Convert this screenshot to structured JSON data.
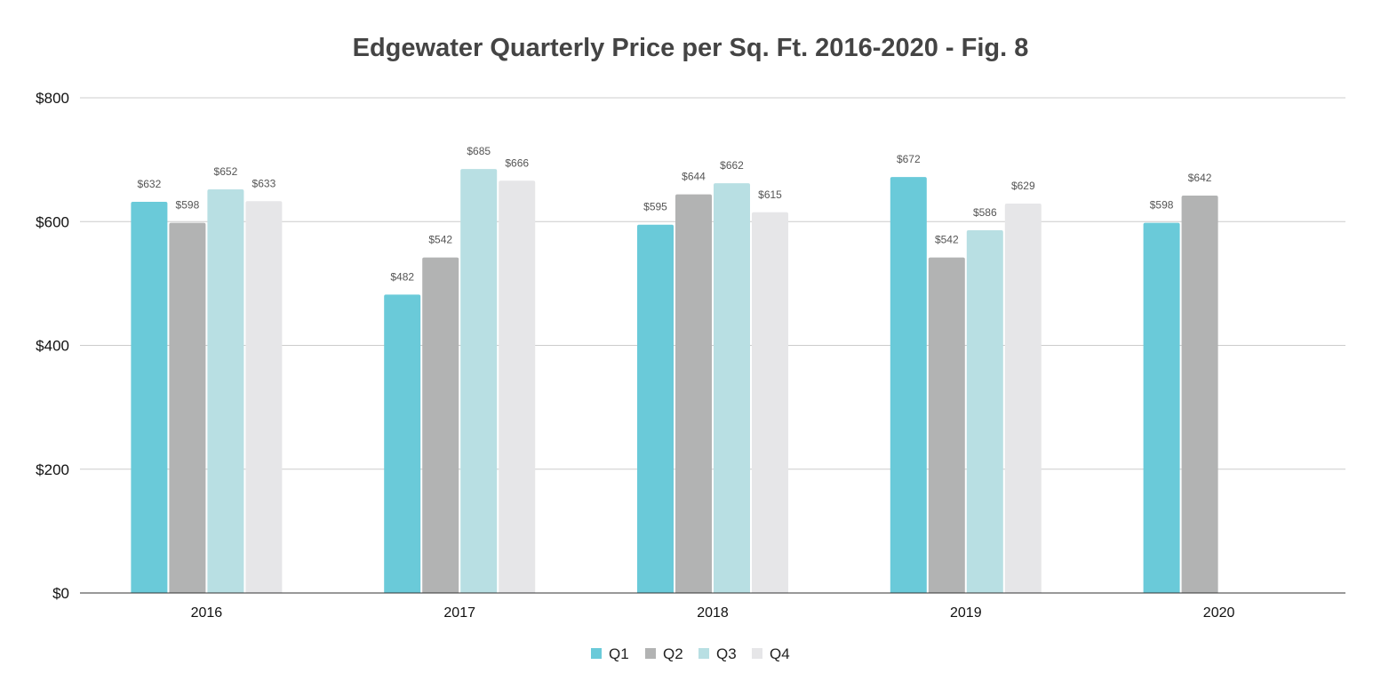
{
  "chart_data": {
    "type": "bar",
    "title": "Edgewater Quarterly Price per Sq. Ft. 2016-2020 - Fig. 8",
    "xlabel": "",
    "ylabel": "",
    "categories": [
      "2016",
      "2017",
      "2018",
      "2019",
      "2020"
    ],
    "series": [
      {
        "name": "Q1",
        "color": "#6acad9",
        "values": [
          632,
          482,
          595,
          672,
          598
        ]
      },
      {
        "name": "Q2",
        "color": "#b2b3b3",
        "values": [
          598,
          542,
          644,
          542,
          642
        ]
      },
      {
        "name": "Q3",
        "color": "#b8dfe3",
        "values": [
          652,
          685,
          662,
          586,
          null
        ]
      },
      {
        "name": "Q4",
        "color": "#e6e6e8",
        "values": [
          633,
          666,
          615,
          629,
          null
        ]
      }
    ],
    "data_labels": {
      "Q1": [
        "$632",
        "$482",
        "$595",
        "$672",
        "$598"
      ],
      "Q2": [
        "$598",
        "$542",
        "$644",
        "$542",
        "$642"
      ],
      "Q3": [
        "$652",
        "$685",
        "$662",
        "$586",
        null
      ],
      "Q4": [
        "$633",
        "$666",
        "$615",
        "$629",
        null
      ]
    },
    "ylim": [
      0,
      800
    ],
    "yticks": [
      0,
      200,
      400,
      600,
      800
    ],
    "ytick_labels": [
      "$0",
      "$200",
      "$400",
      "$600",
      "$800"
    ],
    "grid": true,
    "legend": {
      "position": "bottom-center",
      "entries": [
        "Q1",
        "Q2",
        "Q3",
        "Q4"
      ]
    }
  }
}
